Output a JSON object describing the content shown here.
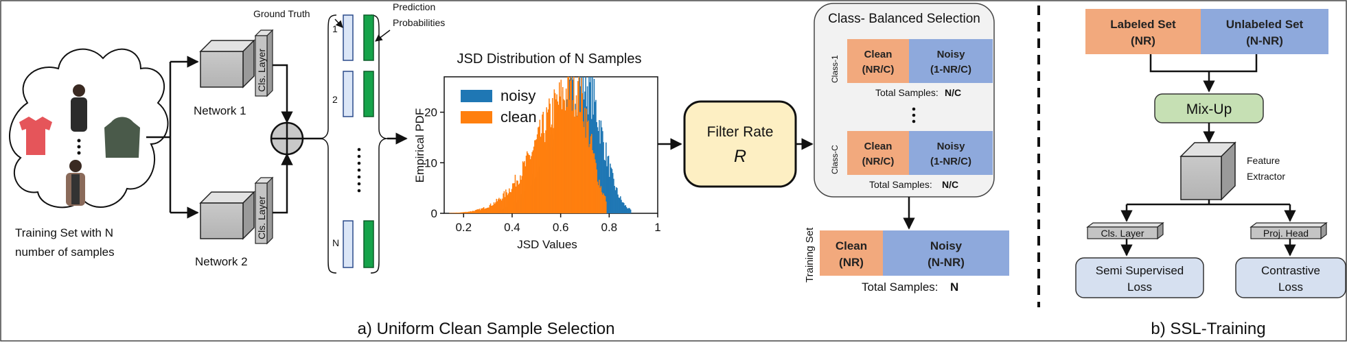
{
  "panel_a": {
    "caption": "a) Uniform Clean Sample Selection",
    "training_set_line1": "Training Set with N",
    "training_set_line2": "number of samples",
    "network1": "Network 1",
    "network2": "Network 2",
    "cls_layer": "Cls. Layer",
    "ground_truth": "Ground Truth",
    "prediction_line1": "Prediction",
    "prediction_line2": "Probabilities",
    "index_1": "1",
    "index_2": "2",
    "index_n": "N",
    "filter_rate_label": "Filter Rate",
    "filter_rate_symbol": "R",
    "class_balanced_title": "Class- Balanced Selection",
    "class1_label": "Class-1",
    "classc_label": "Class-C",
    "clean_label": "Clean",
    "clean_sub": "(NR/C)",
    "noisy_label": "Noisy",
    "noisy_sub": "(1-NR/C)",
    "total_samples_prefix": "Total Samples:",
    "total_samples_value": "N/C",
    "training_set_vertical": "Training Set",
    "train_clean": "Clean",
    "train_clean_sub": "(NR)",
    "train_noisy": "Noisy",
    "train_noisy_sub": "(N-NR)",
    "train_total_prefix": "Total Samples:",
    "train_total_value": "N"
  },
  "panel_b": {
    "caption": "b) SSL-Training",
    "labeled_set": "Labeled Set",
    "labeled_sub": "(NR)",
    "unlabeled_set": "Unlabeled Set",
    "unlabeled_sub": "(N-NR)",
    "mixup": "Mix-Up",
    "feature_line1": "Feature",
    "feature_line2": "Extractor",
    "cls_layer": "Cls. Layer",
    "proj_head": "Proj. Head",
    "semi_line1": "Semi Supervised",
    "semi_line2": "Loss",
    "contrastive_line1": "Contrastive",
    "contrastive_line2": "Loss"
  },
  "colors": {
    "clean": "#f2a97d",
    "noisy": "#8ea9dc",
    "mixup": "#c6e0b4",
    "filter": "#fdefc3",
    "loss": "#d6e0f0",
    "gt_bar": "#dbe6f7",
    "pred_bar": "#16a34a",
    "hist_noisy": "#1f77b4",
    "hist_clean": "#ff7f0e"
  },
  "chart_data": {
    "type": "histogram",
    "title": "JSD Distribution of N Samples",
    "xlabel": "JSD Values",
    "ylabel": "Empirical PDF",
    "xlim": [
      0.12,
      1.0
    ],
    "ylim": [
      0,
      27
    ],
    "xticks": [
      0.2,
      0.4,
      0.6,
      0.8,
      1
    ],
    "xtick_labels": [
      "0.2",
      "0.4",
      "0.6",
      "0.8",
      "1"
    ],
    "yticks": [
      0,
      10,
      20
    ],
    "ytick_labels": [
      "0",
      "10",
      "20"
    ],
    "legend_position": "top-left",
    "series": [
      {
        "name": "noisy",
        "color": "#1f77b4",
        "mode": 0.7,
        "spread_left": 0.13,
        "spread_right": 0.07,
        "peak": 25.5,
        "x_min": 0.3,
        "x_max": 0.89
      },
      {
        "name": "clean",
        "color": "#ff7f0e",
        "mode": 0.66,
        "spread_left": 0.15,
        "spread_right": 0.06,
        "peak": 24.5,
        "x_min": 0.14,
        "x_max": 0.79
      }
    ]
  }
}
